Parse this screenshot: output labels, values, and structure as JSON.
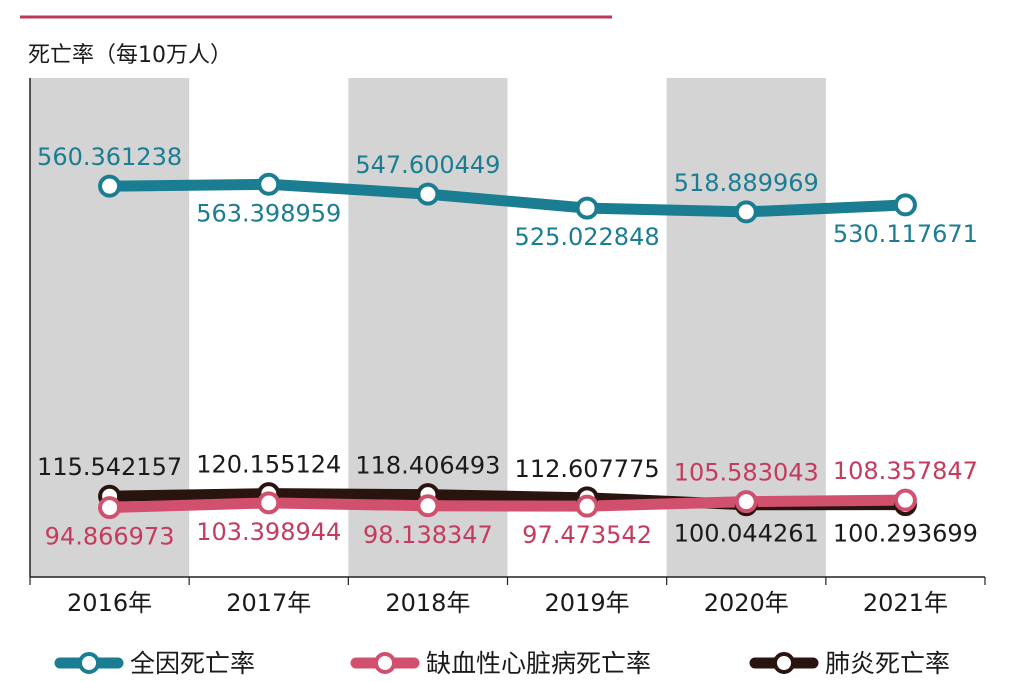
{
  "chart_data": {
    "type": "line",
    "title": "",
    "ylabel": "死亡率（每10万人）",
    "xlabel": "",
    "categories": [
      "2016年",
      "2017年",
      "2018年",
      "2019年",
      "2020年",
      "2021年"
    ],
    "series": [
      {
        "name": "全因死亡率",
        "values": [
          560.361238,
          563.398959,
          547.600449,
          525.022848,
          518.889969,
          530.117671
        ],
        "labels": [
          "560.361238",
          "563.398959",
          "547.600449",
          "525.022848",
          "518.889969",
          "530.117671"
        ],
        "label_pos": [
          "above",
          "below",
          "above",
          "below",
          "above",
          "below"
        ],
        "color": "#1b7d92",
        "label_color": "#1b7d92"
      },
      {
        "name": "缺血性心脏病死亡率",
        "values": [
          94.866973,
          103.398944,
          98.138347,
          97.473542,
          105.583043,
          108.357847
        ],
        "labels": [
          "94.866973",
          "103.398944",
          "98.138347",
          "97.473542",
          "105.583043",
          "108.357847"
        ],
        "label_pos": [
          "below",
          "below",
          "below",
          "below",
          "above",
          "above"
        ],
        "color": "#d0506e",
        "label_color": "#c43b5d"
      },
      {
        "name": "肺炎死亡率",
        "values": [
          115.542157,
          120.155124,
          118.406493,
          112.607775,
          100.044261,
          100.293699
        ],
        "labels": [
          "115.542157",
          "120.155124",
          "118.406493",
          "112.607775",
          "100.044261",
          "100.293699"
        ],
        "label_pos": [
          "above",
          "above",
          "above",
          "above",
          "below",
          "below"
        ],
        "color": "#2a1410",
        "label_color": "#1a1a1a"
      }
    ],
    "grid": false,
    "shaded_columns": [
      0,
      2,
      4
    ],
    "shade_color": "#d4d4d4",
    "legend": "bottom"
  }
}
